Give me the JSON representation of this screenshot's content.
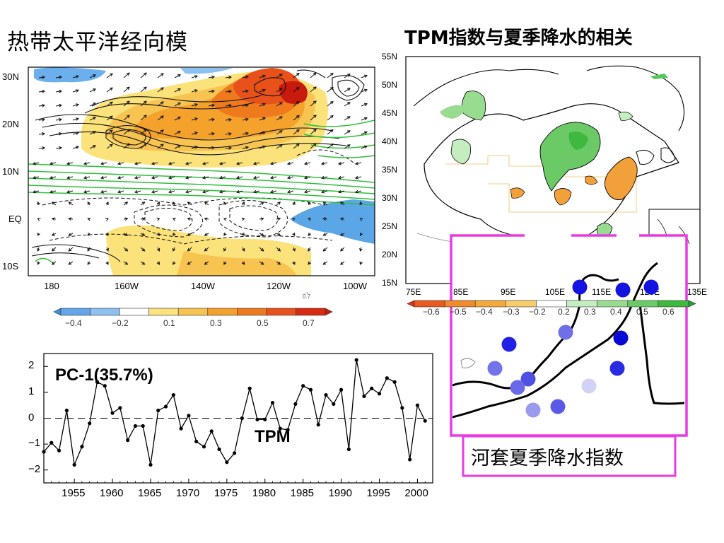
{
  "titles": {
    "left": "热带太平洋经向模",
    "right": "TPM指数与夏季降水的相关"
  },
  "colors": {
    "negative_blue": "#5aa6e6",
    "positive_orange": "#f5a22d",
    "positive_red": "#e02b14",
    "green_contour": "#2fbf3a",
    "magenta_box": "#e93be3",
    "china_corr_green": "#56c85a",
    "china_corr_orange": "#f2a13a",
    "station_blue": "#1414e0"
  },
  "map_left": {
    "lat_labels": [
      "30N",
      "20N",
      "10N",
      "EQ",
      "10S"
    ],
    "lon_labels": [
      "180",
      "160W",
      "140W",
      "120W",
      "100W"
    ],
    "vector_ref": "0.7",
    "colorbar_ticks": [
      "−0.4",
      "−0.2",
      "0.1",
      "0.3",
      "0.5",
      "0.7"
    ],
    "colorbar_colors": [
      "#3f8ee0",
      "#63a6ea",
      "#8cc0f0",
      "#ffffff",
      "#fbe27a",
      "#f8c451",
      "#f5a22d",
      "#ef7a1e",
      "#e8521a",
      "#d92a12",
      "#c91a0e"
    ]
  },
  "map_right": {
    "lat_labels": [
      "55N",
      "50N",
      "45N",
      "40N",
      "35N",
      "30N",
      "25N",
      "20N",
      "15N"
    ],
    "lon_labels": [
      "75E",
      "85E",
      "95E",
      "105E",
      "115E",
      "125E",
      "135E"
    ],
    "colorbar_ticks": [
      "−0.6",
      "−0.5",
      "−0.4",
      "−0.3",
      "−0.2",
      "0.2",
      "0.3",
      "0.4",
      "0.5",
      "0.6"
    ],
    "colorbar_colors": [
      "#e0301a",
      "#eb5a1e",
      "#f08a2a",
      "#f5aa3a",
      "#f8cc6a",
      "#ffffff",
      "#c4eec0",
      "#98dc90",
      "#6cca66",
      "#3eb83e",
      "#1ea62a"
    ]
  },
  "inset": {
    "label": "河套夏季降水指数"
  },
  "chart_data": {
    "type": "line",
    "title": "PC-1(35.7%)",
    "series_label": "TPM",
    "x": [
      1951,
      1952,
      1953,
      1954,
      1955,
      1956,
      1957,
      1958,
      1959,
      1960,
      1961,
      1962,
      1963,
      1964,
      1965,
      1966,
      1967,
      1968,
      1969,
      1970,
      1971,
      1972,
      1973,
      1974,
      1975,
      1976,
      1977,
      1978,
      1979,
      1980,
      1981,
      1982,
      1983,
      1984,
      1985,
      1986,
      1987,
      1988,
      1989,
      1990,
      1991,
      1992,
      1993,
      1994,
      1995,
      1996,
      1997,
      1998,
      1999,
      2000,
      2001
    ],
    "y": [
      -1.3,
      -0.95,
      -1.25,
      0.3,
      -1.8,
      -1.1,
      -0.2,
      1.4,
      1.25,
      0.2,
      0.4,
      -0.85,
      -0.3,
      -0.3,
      -1.8,
      0.3,
      0.45,
      0.9,
      -0.4,
      0.1,
      -0.9,
      -1.1,
      -0.5,
      -1.2,
      -1.7,
      -1.35,
      0.0,
      1.15,
      -0.05,
      -0.05,
      0.6,
      -0.4,
      -0.45,
      0.55,
      1.25,
      1.1,
      -0.25,
      0.9,
      0.55,
      1.1,
      -1.2,
      2.25,
      0.85,
      1.15,
      0.95,
      1.55,
      1.4,
      0.4,
      -1.6,
      0.5,
      -0.1
    ],
    "x_ticks": [
      1955,
      1960,
      1965,
      1970,
      1975,
      1980,
      1985,
      1990,
      1995,
      2000
    ],
    "y_ticks": [
      2,
      1,
      0,
      -1,
      -2
    ],
    "xlim": [
      1951,
      2002
    ],
    "ylim": [
      -2.5,
      2.5
    ],
    "zero_line": "dashed",
    "grid": false
  }
}
